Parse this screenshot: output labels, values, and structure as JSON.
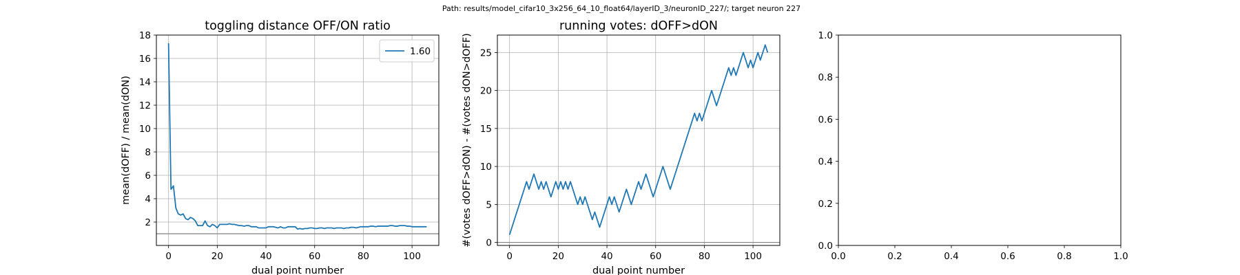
{
  "figure": {
    "suptitle": "Path: results/model_cifar10_3x256_64_10_float64/layerID_3/neuronID_227/; target neuron 227"
  },
  "colors": {
    "series": "#1f77b4",
    "reference_line": "#808080",
    "grid": "#b0b0b0"
  },
  "chart_data": [
    {
      "type": "line",
      "title": "toggling distance OFF/ON ratio",
      "xlabel": "dual point number",
      "ylabel": "mean(dOFF) / mean(dON)",
      "xlim": [
        -5,
        111
      ],
      "ylim": [
        0,
        18
      ],
      "xticks": [
        0,
        20,
        40,
        60,
        80,
        100
      ],
      "yticks": [
        2,
        4,
        6,
        8,
        10,
        12,
        14,
        16,
        18
      ],
      "grid": true,
      "legend": {
        "placement": "top-right",
        "entries": [
          "1.60"
        ]
      },
      "hlines": [
        1
      ],
      "series": [
        {
          "name": "1.60",
          "x": [
            0,
            1,
            2,
            3,
            4,
            5,
            6,
            7,
            8,
            9,
            10,
            11,
            12,
            13,
            14,
            15,
            16,
            17,
            18,
            19,
            20,
            21,
            22,
            23,
            24,
            25,
            26,
            27,
            28,
            29,
            30,
            31,
            32,
            33,
            34,
            35,
            36,
            37,
            38,
            39,
            40,
            41,
            42,
            43,
            44,
            45,
            46,
            47,
            48,
            49,
            50,
            51,
            52,
            53,
            54,
            55,
            56,
            57,
            58,
            59,
            60,
            61,
            62,
            63,
            64,
            65,
            66,
            67,
            68,
            69,
            70,
            71,
            72,
            73,
            74,
            75,
            76,
            77,
            78,
            79,
            80,
            81,
            82,
            83,
            84,
            85,
            86,
            87,
            88,
            89,
            90,
            91,
            92,
            93,
            94,
            95,
            96,
            97,
            98,
            99,
            100,
            101,
            102,
            103,
            104,
            105,
            106
          ],
          "y": [
            17.3,
            4.8,
            5.1,
            3.2,
            2.7,
            2.6,
            2.7,
            2.3,
            2.2,
            2.4,
            2.3,
            2.1,
            1.7,
            1.7,
            1.7,
            2.1,
            1.7,
            1.6,
            1.8,
            1.7,
            1.5,
            1.8,
            1.8,
            1.8,
            1.8,
            1.85,
            1.8,
            1.8,
            1.75,
            1.7,
            1.7,
            1.65,
            1.7,
            1.7,
            1.6,
            1.6,
            1.6,
            1.5,
            1.5,
            1.5,
            1.5,
            1.6,
            1.6,
            1.6,
            1.55,
            1.5,
            1.6,
            1.5,
            1.5,
            1.6,
            1.6,
            1.6,
            1.6,
            1.4,
            1.45,
            1.4,
            1.45,
            1.45,
            1.5,
            1.5,
            1.45,
            1.45,
            1.5,
            1.5,
            1.45,
            1.5,
            1.5,
            1.5,
            1.45,
            1.5,
            1.5,
            1.5,
            1.45,
            1.5,
            1.5,
            1.55,
            1.55,
            1.5,
            1.55,
            1.6,
            1.6,
            1.6,
            1.6,
            1.65,
            1.65,
            1.6,
            1.65,
            1.65,
            1.65,
            1.65,
            1.65,
            1.7,
            1.7,
            1.65,
            1.65,
            1.7,
            1.7,
            1.7,
            1.65,
            1.65,
            1.6,
            1.6,
            1.6,
            1.6,
            1.6,
            1.6,
            1.6
          ]
        }
      ]
    },
    {
      "type": "line",
      "title": "running votes: dOFF>dON",
      "xlabel": "dual point number",
      "ylabel": "#(votes dOFF>dON) - #(votes dON>dOFF)",
      "xlim": [
        -5,
        111
      ],
      "ylim": [
        -0.4,
        27.3
      ],
      "xticks": [
        0,
        20,
        40,
        60,
        80,
        100
      ],
      "yticks": [
        0,
        5,
        10,
        15,
        20,
        25
      ],
      "grid": true,
      "hlines": [
        0
      ],
      "series": [
        {
          "x": [
            0,
            1,
            2,
            3,
            4,
            5,
            6,
            7,
            8,
            9,
            10,
            11,
            12,
            13,
            14,
            15,
            16,
            17,
            18,
            19,
            20,
            21,
            22,
            23,
            24,
            25,
            26,
            27,
            28,
            29,
            30,
            31,
            32,
            33,
            34,
            35,
            36,
            37,
            38,
            39,
            40,
            41,
            42,
            43,
            44,
            45,
            46,
            47,
            48,
            49,
            50,
            51,
            52,
            53,
            54,
            55,
            56,
            57,
            58,
            59,
            60,
            61,
            62,
            63,
            64,
            65,
            66,
            67,
            68,
            69,
            70,
            71,
            72,
            73,
            74,
            75,
            76,
            77,
            78,
            79,
            80,
            81,
            82,
            83,
            84,
            85,
            86,
            87,
            88,
            89,
            90,
            91,
            92,
            93,
            94,
            95,
            96,
            97,
            98,
            99,
            100,
            101,
            102,
            103,
            104,
            105,
            106
          ],
          "y": [
            1,
            2,
            3,
            4,
            5,
            6,
            7,
            8,
            7,
            8,
            9,
            8,
            7,
            8,
            7,
            8,
            7,
            6,
            7,
            8,
            7,
            8,
            7,
            8,
            7,
            8,
            7,
            6,
            5,
            6,
            5,
            6,
            5,
            4,
            3,
            4,
            3,
            2,
            3,
            4,
            5,
            6,
            5,
            6,
            5,
            4,
            5,
            6,
            7,
            6,
            5,
            6,
            7,
            8,
            7,
            8,
            9,
            8,
            7,
            6,
            7,
            8,
            9,
            10,
            9,
            8,
            7,
            8,
            9,
            10,
            11,
            12,
            13,
            14,
            15,
            16,
            17,
            16,
            17,
            16,
            17,
            18,
            19,
            20,
            19,
            18,
            19,
            20,
            21,
            22,
            23,
            22,
            23,
            22,
            23,
            24,
            25,
            24,
            23,
            24,
            23,
            24,
            25,
            24,
            25,
            26,
            25
          ]
        }
      ]
    },
    {
      "type": "line",
      "title": "",
      "xlim": [
        0,
        1
      ],
      "ylim": [
        0,
        1
      ],
      "xticks": [
        0.0,
        0.2,
        0.4,
        0.6,
        0.8,
        1.0
      ],
      "yticks": [
        0.0,
        0.2,
        0.4,
        0.6,
        0.8,
        1.0
      ],
      "xtick_labels": [
        "0.0",
        "0.2",
        "0.4",
        "0.6",
        "0.8",
        "1.0"
      ],
      "ytick_labels": [
        "0.0",
        "0.2",
        "0.4",
        "0.6",
        "0.8",
        "1.0"
      ],
      "grid": false,
      "series": []
    }
  ]
}
